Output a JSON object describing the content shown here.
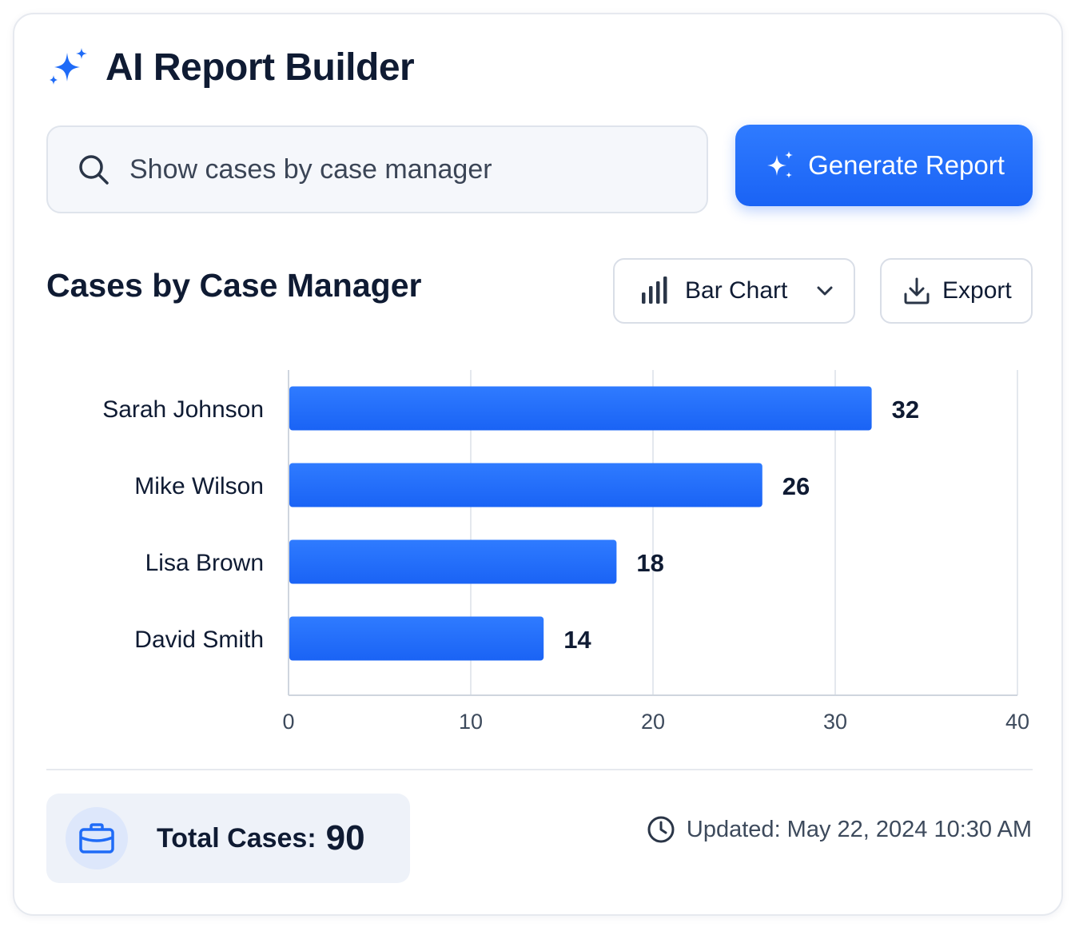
{
  "app": {
    "title": "AI Report Builder"
  },
  "search": {
    "value": "Show cases by case manager",
    "placeholder": ""
  },
  "generate_button": {
    "label": "Generate Report"
  },
  "report": {
    "title": "Cases by Case Manager",
    "chart_type_selected": "Bar Chart",
    "export_label": "Export"
  },
  "chart_data": {
    "type": "bar",
    "orientation": "horizontal",
    "categories": [
      "Sarah Johnson",
      "Mike Wilson",
      "Lisa Brown",
      "David Smith"
    ],
    "values": [
      32,
      26,
      18,
      14
    ],
    "xlim": [
      0,
      40
    ],
    "xticks": [
      0,
      10,
      20,
      30,
      40
    ],
    "grid": true,
    "bar_color": "#1f6bf7"
  },
  "summary": {
    "total_label": "Total Cases:",
    "total_value": "90",
    "updated_text": "Updated: May 22, 2024 10:30 AM"
  },
  "colors": {
    "accent": "#1f6bf7",
    "text": "#0f1b33",
    "muted_text": "#3d4a5c"
  },
  "icons": {
    "app": "sparkles-icon",
    "search": "search-icon",
    "generate": "sparkles-icon",
    "chart_type": "bar-chart-icon",
    "dropdown": "chevron-down-icon",
    "export": "download-icon",
    "total": "briefcase-icon",
    "updated": "clock-icon"
  }
}
